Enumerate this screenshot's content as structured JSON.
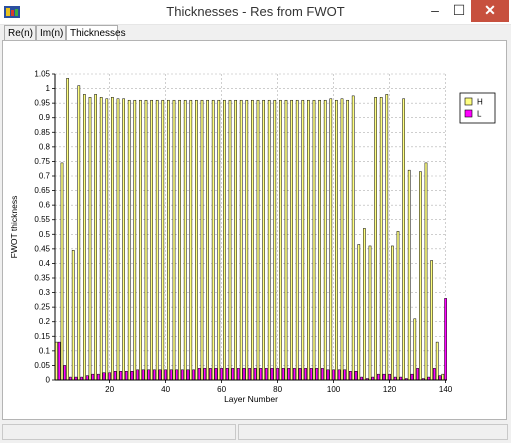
{
  "window": {
    "title": "Thicknesses - Res from FWOT",
    "controls": {
      "minimize": "–",
      "maximize": "☐",
      "close": "✕"
    }
  },
  "tabs": [
    {
      "label": "Re(n)"
    },
    {
      "label": "Im(n)"
    },
    {
      "label": "Thicknesses",
      "active": true
    }
  ],
  "colors": {
    "h_series": "#ffff80",
    "l_series": "#ff00ff",
    "bar_outline": "#000000",
    "grid": "#b0b0b0",
    "close_button": "#c7503e"
  },
  "chart_data": {
    "type": "bar",
    "xlabel": "Layer Number",
    "ylabel": "FWOT thickness",
    "xlim": [
      0.5,
      140.5
    ],
    "ylim": [
      0,
      1.05
    ],
    "xticks": [
      20,
      40,
      60,
      80,
      100,
      120,
      140
    ],
    "yticks": [
      0,
      0.05,
      0.1,
      0.15,
      0.2,
      0.25,
      0.3,
      0.35,
      0.4,
      0.45,
      0.5,
      0.55,
      0.6,
      0.65,
      0.7,
      0.75,
      0.8,
      0.85,
      0.9,
      0.95,
      1,
      1.05
    ],
    "ytick_labels": [
      "0",
      "0.05",
      "0.1",
      "0.15",
      "0.2",
      "0.25",
      "0.3",
      "0.35",
      "0.4",
      "0.45",
      "0.5",
      "0.55",
      "0.6",
      "0.65",
      "0.7",
      "0.75",
      "0.8",
      "0.85",
      "0.9",
      "0.95",
      "1",
      "1.05"
    ],
    "grid": true,
    "legend": "top-right",
    "series": [
      {
        "name": "H",
        "x": [
          1,
          3,
          5,
          7,
          9,
          11,
          13,
          15,
          17,
          19,
          21,
          23,
          25,
          27,
          29,
          31,
          33,
          35,
          37,
          39,
          41,
          43,
          45,
          47,
          49,
          51,
          53,
          55,
          57,
          59,
          61,
          63,
          65,
          67,
          69,
          71,
          73,
          75,
          77,
          79,
          81,
          83,
          85,
          87,
          89,
          91,
          93,
          95,
          97,
          99,
          101,
          103,
          105,
          107,
          109,
          111,
          113,
          115,
          117,
          119,
          121,
          123,
          125,
          127,
          129,
          131,
          133,
          135,
          137,
          139
        ],
        "values": [
          0.13,
          0.745,
          1.035,
          0.445,
          1.01,
          0.98,
          0.97,
          0.98,
          0.97,
          0.965,
          0.97,
          0.965,
          0.965,
          0.96,
          0.96,
          0.96,
          0.96,
          0.96,
          0.96,
          0.96,
          0.96,
          0.96,
          0.96,
          0.96,
          0.96,
          0.96,
          0.96,
          0.96,
          0.96,
          0.96,
          0.96,
          0.96,
          0.96,
          0.96,
          0.96,
          0.96,
          0.96,
          0.96,
          0.96,
          0.96,
          0.96,
          0.96,
          0.96,
          0.96,
          0.96,
          0.96,
          0.96,
          0.96,
          0.96,
          0.965,
          0.96,
          0.965,
          0.96,
          0.975,
          0.465,
          0.52,
          0.46,
          0.97,
          0.97,
          0.98,
          0.46,
          0.51,
          0.965,
          0.72,
          0.21,
          0.715,
          0.745,
          0.41,
          0.13,
          0.02
        ]
      },
      {
        "name": "L",
        "x": [
          2,
          4,
          6,
          8,
          10,
          12,
          14,
          16,
          18,
          20,
          22,
          24,
          26,
          28,
          30,
          32,
          34,
          36,
          38,
          40,
          42,
          44,
          46,
          48,
          50,
          52,
          54,
          56,
          58,
          60,
          62,
          64,
          66,
          68,
          70,
          72,
          74,
          76,
          78,
          80,
          82,
          84,
          86,
          88,
          90,
          92,
          94,
          96,
          98,
          100,
          102,
          104,
          106,
          108,
          110,
          112,
          114,
          116,
          118,
          120,
          122,
          124,
          126,
          128,
          130,
          132,
          134,
          136,
          138,
          140
        ],
        "values": [
          0.13,
          0.05,
          0.01,
          0.01,
          0.01,
          0.015,
          0.02,
          0.02,
          0.025,
          0.025,
          0.03,
          0.03,
          0.03,
          0.03,
          0.035,
          0.035,
          0.035,
          0.035,
          0.035,
          0.035,
          0.035,
          0.035,
          0.035,
          0.035,
          0.035,
          0.04,
          0.04,
          0.04,
          0.04,
          0.04,
          0.04,
          0.04,
          0.04,
          0.04,
          0.04,
          0.04,
          0.04,
          0.04,
          0.04,
          0.04,
          0.04,
          0.04,
          0.04,
          0.04,
          0.04,
          0.04,
          0.04,
          0.04,
          0.035,
          0.035,
          0.035,
          0.035,
          0.03,
          0.03,
          0.01,
          0.005,
          0.01,
          0.02,
          0.02,
          0.02,
          0.01,
          0.01,
          0.005,
          0.02,
          0.04,
          0.005,
          0.01,
          0.04,
          0.015,
          0.28
        ]
      }
    ]
  }
}
